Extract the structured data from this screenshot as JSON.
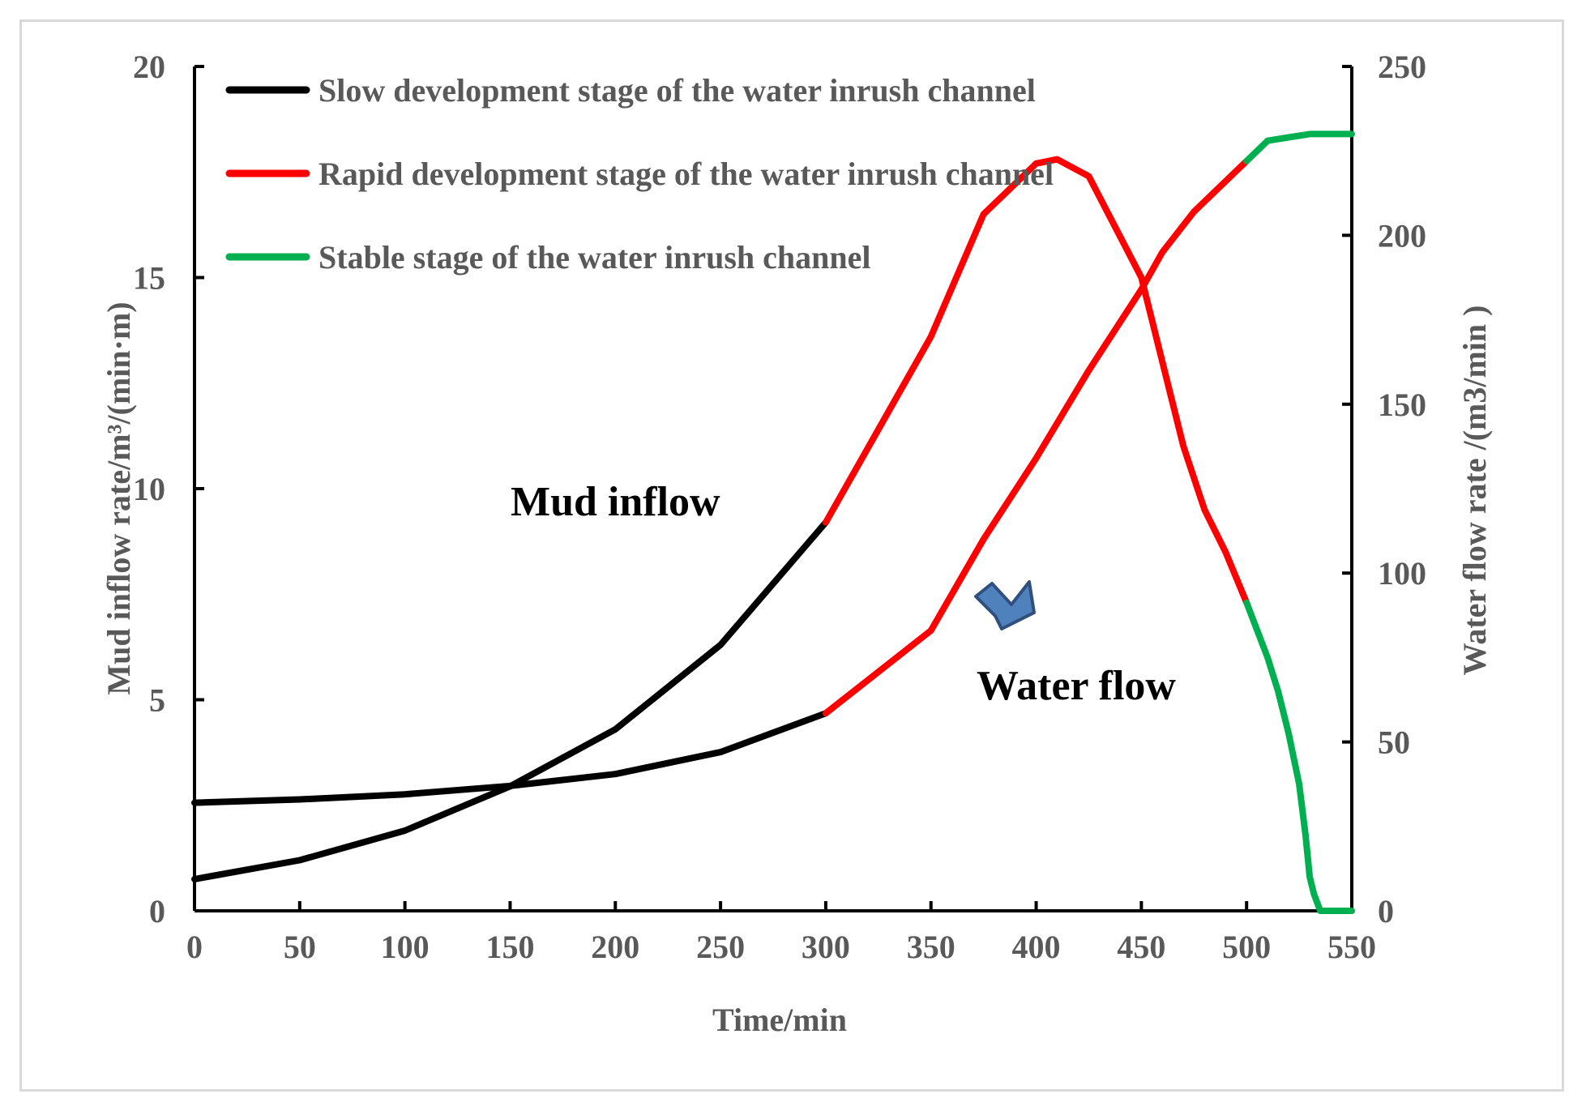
{
  "chart_data": {
    "type": "line",
    "xlabel": "Time/min",
    "ylabel_left": "Mud inflow rate/m³/(min·m)",
    "ylabel_right": "Water flow rate /(m3/min )",
    "xlim": [
      0,
      550
    ],
    "ylim_left": [
      0,
      20
    ],
    "ylim_right": [
      0,
      250
    ],
    "x_ticks": [
      "0",
      "50",
      "100",
      "150",
      "200",
      "250",
      "300",
      "350",
      "400",
      "450",
      "500",
      "550"
    ],
    "y_left_ticks": [
      "0",
      "5",
      "10",
      "15",
      "20"
    ],
    "y_right_ticks": [
      "0",
      "50",
      "100",
      "150",
      "200",
      "250"
    ],
    "grid": false,
    "legend_position": "top-left",
    "stages": [
      {
        "name": "Slow development stage of the water inrush channel",
        "color": "#000000"
      },
      {
        "name": "Rapid development stage of the water inrush channel",
        "color": "#ff0000"
      },
      {
        "name": "Stable stage of the water inrush channel",
        "color": "#00b050"
      }
    ],
    "series": [
      {
        "axis": "left",
        "segments": [
          {
            "stage": 0,
            "x": [
              0,
              50,
              100,
              150,
              200,
              250,
              300
            ],
            "y": [
              0.75,
              1.2,
              1.9,
              2.95,
              4.3,
              6.3,
              9.2
            ]
          },
          {
            "stage": 1,
            "x": [
              300,
              325,
              350,
              375,
              400,
              410,
              425,
              450,
              460,
              470,
              480,
              490,
              500
            ],
            "y": [
              9.2,
              11.4,
              13.6,
              16.5,
              17.7,
              17.8,
              17.4,
              15.0,
              13.0,
              11.0,
              9.5,
              8.5,
              7.3
            ]
          },
          {
            "stage": 2,
            "x": [
              500,
              510,
              515,
              520,
              525,
              528,
              530,
              532,
              535,
              540,
              545,
              550
            ],
            "y": [
              7.3,
              6.0,
              5.2,
              4.2,
              3.0,
              1.8,
              0.8,
              0.4,
              0.0,
              0.0,
              0.0,
              0.0
            ]
          }
        ]
      },
      {
        "axis": "right",
        "segments": [
          {
            "stage": 0,
            "x": [
              0,
              50,
              100,
              150,
              200,
              250,
              300
            ],
            "y": [
              32,
              33,
              34.5,
              37,
              40.5,
              47,
              58.5
            ]
          },
          {
            "stage": 1,
            "x": [
              300,
              350,
              375,
              400,
              425,
              450,
              460,
              475,
              500
            ],
            "y": [
              58.5,
              83,
              110,
              134,
              160,
              184,
              195,
              207,
              222
            ]
          },
          {
            "stage": 2,
            "x": [
              500,
              510,
              520,
              530,
              540,
              550
            ],
            "y": [
              222,
              228,
              229,
              230,
              230,
              230
            ]
          }
        ]
      }
    ],
    "annotations": [
      "Mud inflow",
      "Water flow"
    ]
  },
  "arrow": {
    "name": "arrow-icon",
    "color": "#4f81bd",
    "stroke": "#2f4f7f"
  }
}
